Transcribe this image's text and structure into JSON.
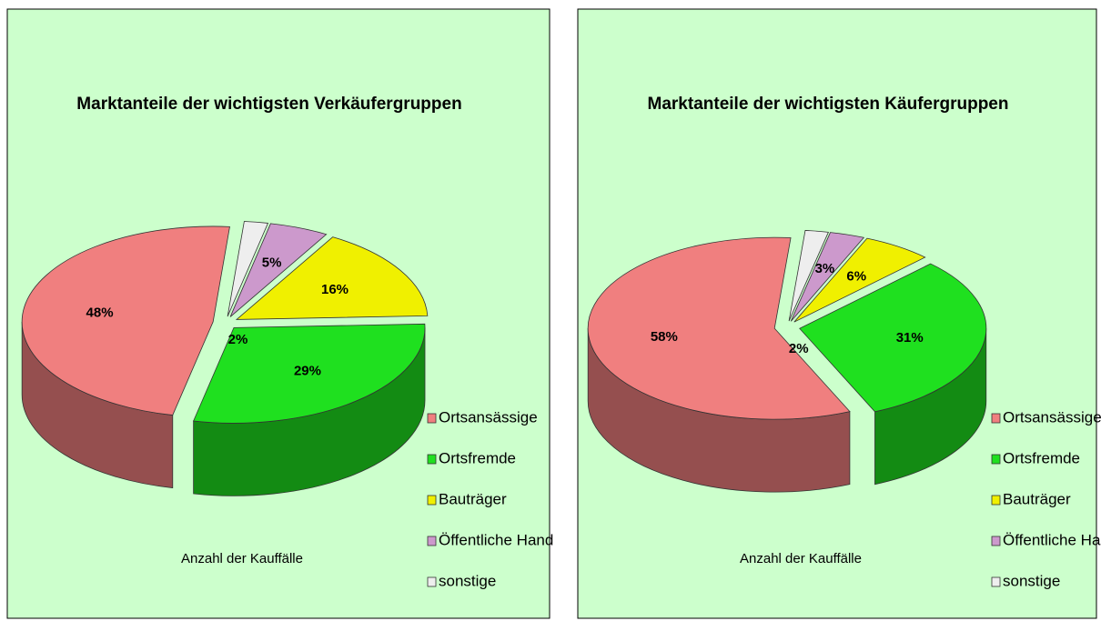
{
  "chart_data": [
    {
      "type": "pie",
      "title": "Marktanteile der wichtigsten Verkäufergruppen",
      "subtitle": "Anzahl der Kauffälle",
      "categories": [
        "Ortsansässige",
        "Ortsfremde",
        "Bauträger",
        "Öffentliche Hand",
        "sonstige"
      ],
      "values": [
        48,
        29,
        16,
        5,
        2
      ],
      "value_labels": [
        "48%",
        "29%",
        "16%",
        "5%",
        "2%"
      ],
      "colors": [
        "#f07f7f",
        "#1fe01f",
        "#f0f000",
        "#cc99cc",
        "#eeeeee"
      ],
      "legend": "right"
    },
    {
      "type": "pie",
      "title": "Marktanteile der wichtigsten Käufergruppen",
      "subtitle": "Anzahl der Kauffälle",
      "categories": [
        "Ortsansässige",
        "Ortsfremde",
        "Bauträger",
        "Öffentliche Hand",
        "sonstige"
      ],
      "values": [
        58,
        31,
        6,
        3,
        2
      ],
      "value_labels": [
        "58%",
        "31%",
        "6%",
        "3%",
        "2%"
      ],
      "colors": [
        "#f07f7f",
        "#1fe01f",
        "#f0f000",
        "#cc99cc",
        "#eeeeee"
      ],
      "legend": "right"
    }
  ]
}
